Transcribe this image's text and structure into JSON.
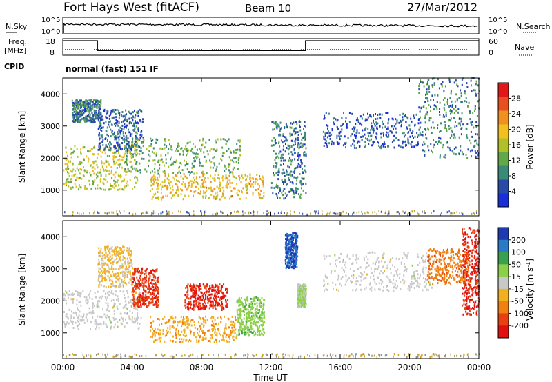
{
  "header": {
    "station": "Fort Hays West (fitACF)",
    "beam": "Beam 10",
    "date": "27/Mar/2012"
  },
  "noise_panel": {
    "left_label": "N.Sky",
    "right_label": "N.Search",
    "ticks": [
      "10^5",
      "10^0"
    ]
  },
  "freq_panel": {
    "left_label_1": "Freq.",
    "left_label_2": "[MHz]",
    "left_ticks": [
      "18",
      "8"
    ],
    "right_label": "Nave",
    "right_ticks": [
      "60",
      "0"
    ]
  },
  "cpid": {
    "label": "CPID",
    "text": "normal (fast) 151 IF"
  },
  "chart_data": [
    {
      "type": "heatmap",
      "ylabel": "Slant Range [km]",
      "y_ticks": [
        "1000",
        "2000",
        "3000",
        "4000"
      ],
      "ylim": [
        200,
        4500
      ],
      "x_ticks": [
        "00:00",
        "04:00",
        "08:00",
        "12:00",
        "16:00",
        "20:00",
        "00:00"
      ],
      "colorbar": {
        "label": "Power [dB]",
        "ticks": [
          "4",
          "8",
          "12",
          "16",
          "20",
          "24",
          "28"
        ],
        "colors": [
          "#1a2fd8",
          "#2a4aa8",
          "#3a8a78",
          "#63a848",
          "#b0c028",
          "#f0c020",
          "#f09020",
          "#e85020",
          "#e01818"
        ]
      },
      "regions": [
        {
          "t": [
            0.0,
            4.3
          ],
          "r": [
            1000,
            2400
          ],
          "v": 16
        },
        {
          "t": [
            0.5,
            2.2
          ],
          "r": [
            3100,
            3800
          ],
          "v": 8
        },
        {
          "t": [
            2.0,
            4.6
          ],
          "r": [
            2200,
            3500
          ],
          "v": 6
        },
        {
          "t": [
            3.5,
            10.2
          ],
          "r": [
            1500,
            2600
          ],
          "v": 12
        },
        {
          "t": [
            5.0,
            11.6
          ],
          "r": [
            700,
            1500
          ],
          "v": 20
        },
        {
          "t": [
            12.0,
            14.0
          ],
          "r": [
            700,
            3200
          ],
          "v": 8
        },
        {
          "t": [
            15.0,
            20.5
          ],
          "r": [
            2300,
            3400
          ],
          "v": 5
        },
        {
          "t": [
            20.5,
            24.0
          ],
          "r": [
            2000,
            4500
          ],
          "v": 8
        }
      ]
    },
    {
      "type": "heatmap",
      "ylabel": "Slant Range [km]",
      "y_ticks": [
        "1000",
        "2000",
        "3000",
        "4000"
      ],
      "ylim": [
        200,
        4500
      ],
      "x_ticks": [
        "00:00",
        "04:00",
        "08:00",
        "12:00",
        "16:00",
        "20:00",
        "00:00"
      ],
      "xlabel": "Time UT",
      "colorbar": {
        "label": "Velocity [m s",
        "label_sup": "-1",
        "label_end": "]",
        "ticks": [
          "200",
          "100",
          "50",
          "15",
          "-15",
          "-50",
          "-100",
          "-200"
        ],
        "colors": [
          "#1f3bb0",
          "#2a7ac8",
          "#3aa050",
          "#8ccf4a",
          "#c8c8c8",
          "#f0b020",
          "#f08010",
          "#e84010",
          "#e01010"
        ]
      },
      "regions": [
        {
          "t": [
            0.0,
            4.5
          ],
          "r": [
            1100,
            2300
          ],
          "v": 0
        },
        {
          "t": [
            2.0,
            4.0
          ],
          "r": [
            2400,
            3700
          ],
          "v": -40
        },
        {
          "t": [
            4.0,
            5.5
          ],
          "r": [
            1800,
            3000
          ],
          "v": -180
        },
        {
          "t": [
            7.0,
            9.5
          ],
          "r": [
            1700,
            2500
          ],
          "v": -200
        },
        {
          "t": [
            5.0,
            10.0
          ],
          "r": [
            700,
            1500
          ],
          "v": -70
        },
        {
          "t": [
            10.0,
            11.6
          ],
          "r": [
            900,
            2100
          ],
          "v": 60
        },
        {
          "t": [
            12.8,
            13.5
          ],
          "r": [
            3000,
            4100
          ],
          "v": 200
        },
        {
          "t": [
            13.5,
            14.0
          ],
          "r": [
            1800,
            2500
          ],
          "v": 30
        },
        {
          "t": [
            15.0,
            21.5
          ],
          "r": [
            2300,
            3500
          ],
          "v": 0
        },
        {
          "t": [
            21.0,
            23.5
          ],
          "r": [
            2500,
            3600
          ],
          "v": -120
        },
        {
          "t": [
            23.0,
            24.0
          ],
          "r": [
            1500,
            4300
          ],
          "v": -200
        }
      ]
    }
  ]
}
